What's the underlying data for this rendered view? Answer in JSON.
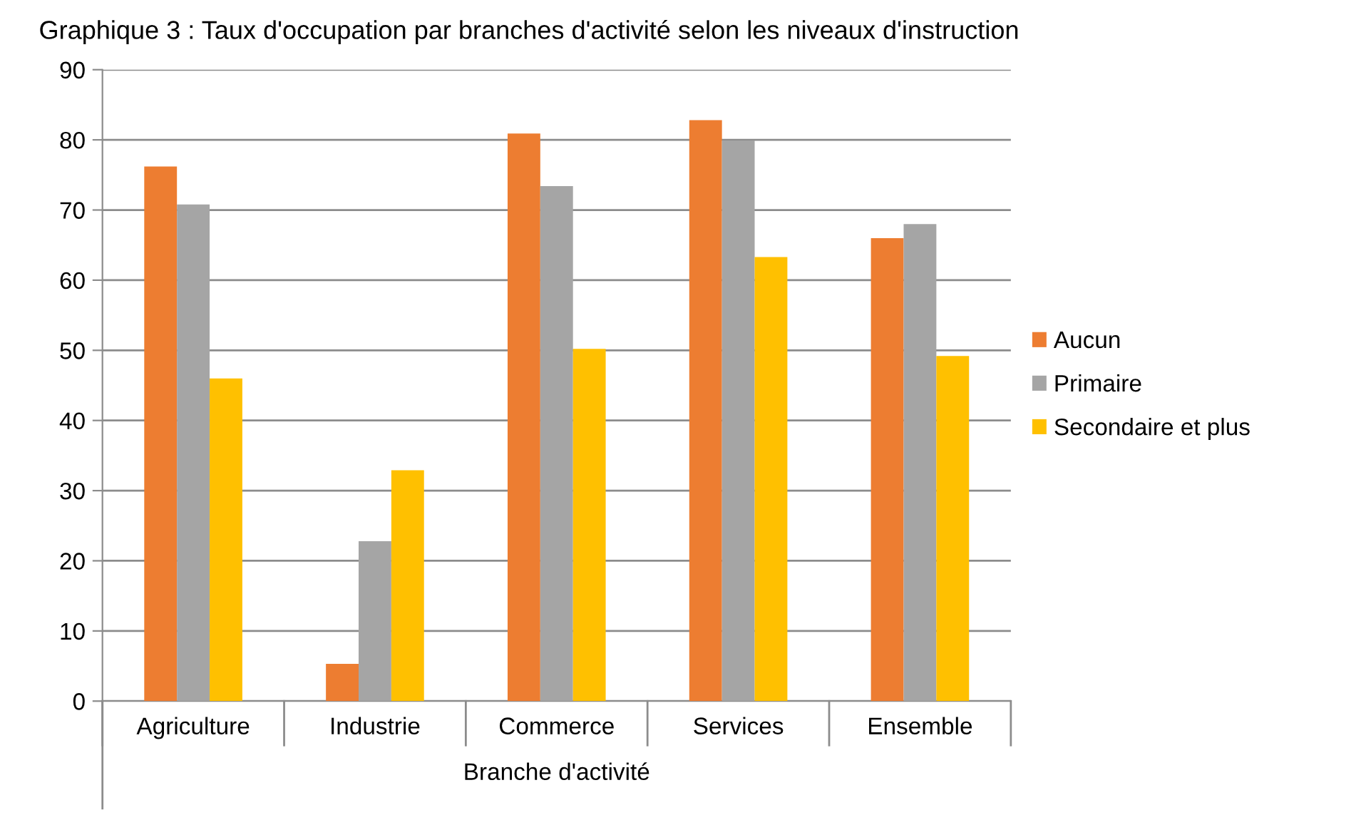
{
  "chart_data": {
    "type": "bar",
    "title": "Graphique 3 : Taux d'occupation par branches d'activité selon les niveaux d'instruction",
    "xlabel": "Branche d'activité",
    "categories": [
      "Agriculture",
      "Industrie",
      "Commerce",
      "Services",
      "Ensemble"
    ],
    "series": [
      {
        "name": "Aucun",
        "color": "#ed7d31",
        "values": [
          76.2,
          5.3,
          80.9,
          82.8,
          66.0
        ]
      },
      {
        "name": "Primaire",
        "color": "#a5a5a5",
        "values": [
          70.8,
          22.8,
          73.4,
          79.9,
          68.0
        ]
      },
      {
        "name": "Secondaire et plus",
        "color": "#ffc000",
        "values": [
          46.0,
          32.9,
          50.2,
          63.3,
          49.2
        ]
      }
    ],
    "ylim": [
      0,
      90
    ],
    "yticks": [
      0,
      10,
      20,
      30,
      40,
      50,
      60,
      70,
      80,
      90
    ],
    "grid": "y",
    "legend": "right"
  }
}
